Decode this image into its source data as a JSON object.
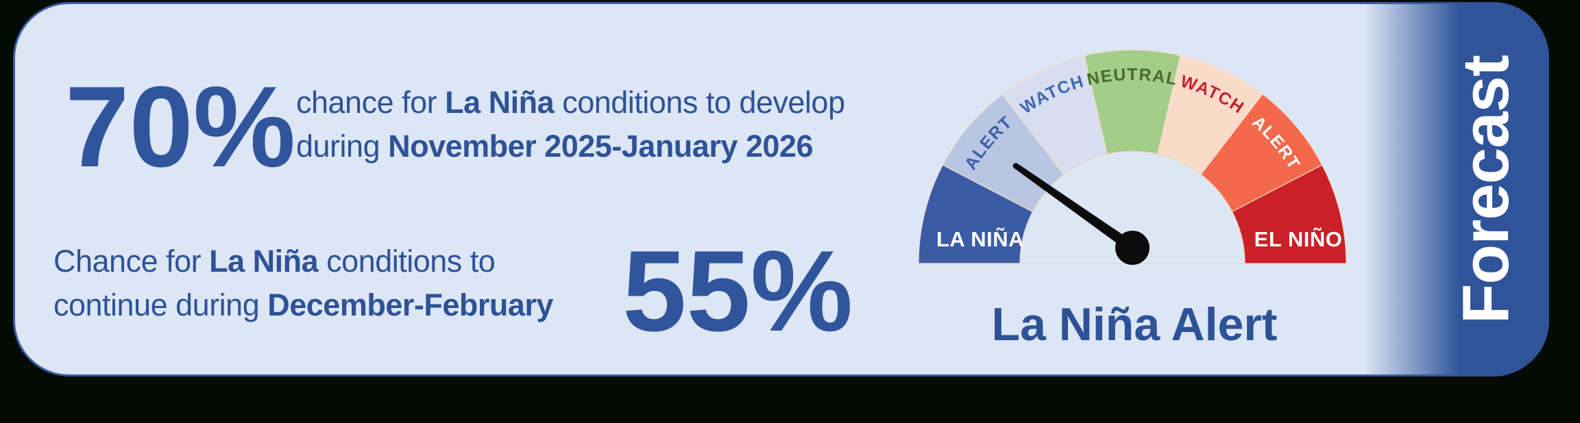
{
  "theme": {
    "page_bg": "#040b05",
    "panel_bg": "#dce6f4",
    "panel_border": "#3c5fa5",
    "text_blue": "#2e5296",
    "stat_blue": "#31559c",
    "band_blue": "#30549a",
    "needle_color": "#0c0c0c",
    "segment_stroke": "#f6dfcd",
    "inner_disc_fill": "#dde7f4",
    "inner_disc_stroke": "#efd3bf",
    "forecast_text": "#ffffff"
  },
  "stat_develop": {
    "value": "70%",
    "l1_normal1": "chance for ",
    "l1_bold": "La Niña",
    "l1_normal2": " conditions to develop",
    "l2_normal": "during ",
    "l2_bold": "November 2025-January 2026"
  },
  "stat_continue": {
    "value": "55%",
    "l1_normal1": "Chance for ",
    "l1_bold": "La Niña",
    "l1_normal2": " conditions to",
    "l2_normal": "continue during ",
    "l2_bold": "December-February"
  },
  "forecast_tab": {
    "label": "Forecast"
  },
  "chart_data": {
    "type": "gauge",
    "title": "ENSO Outlook dial",
    "status_label": "La Niña Alert",
    "scale_deg": [
      180,
      0
    ],
    "needle_angle_deg": 140,
    "segments": [
      {
        "label": "LA NIÑA",
        "start_deg": 180,
        "end_deg": 152.5,
        "color": "#3b5ba5",
        "label_color": "#ffffff",
        "label_style": "horizontal"
      },
      {
        "label": "ALERT",
        "start_deg": 152.5,
        "end_deg": 127.5,
        "color": "#b9c6e3",
        "label_color": "#3a5fa9",
        "label_style": "arc"
      },
      {
        "label": "WATCH",
        "start_deg": 127.5,
        "end_deg": 103,
        "color": "#d8def0",
        "label_color": "#3e68b0",
        "label_style": "arc"
      },
      {
        "label": "NEUTRAL",
        "start_deg": 103,
        "end_deg": 77,
        "color": "#a3cd88",
        "label_color": "#4b6b2d",
        "label_style": "arc"
      },
      {
        "label": "WATCH",
        "start_deg": 77,
        "end_deg": 52.5,
        "color": "#fadbc9",
        "label_color": "#c2232d",
        "label_style": "arc"
      },
      {
        "label": "ALERT",
        "start_deg": 52.5,
        "end_deg": 27.5,
        "color": "#f4694b",
        "label_color": "#ffffff",
        "label_style": "arc"
      },
      {
        "label": "EL NIÑO",
        "start_deg": 27.5,
        "end_deg": 0,
        "color": "#ca2027",
        "label_color": "#ffffff",
        "label_style": "horizontal"
      }
    ],
    "stats": [
      {
        "value": 70,
        "unit": "%",
        "event": "La Niña conditions to develop",
        "period": "November 2025-January 2026"
      },
      {
        "value": 55,
        "unit": "%",
        "event": "La Niña conditions to continue",
        "period": "December-February"
      }
    ]
  }
}
